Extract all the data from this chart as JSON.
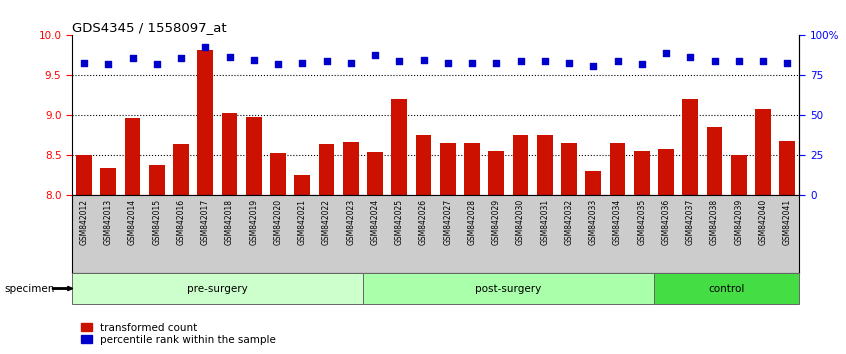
{
  "title": "GDS4345 / 1558097_at",
  "samples": [
    "GSM842012",
    "GSM842013",
    "GSM842014",
    "GSM842015",
    "GSM842016",
    "GSM842017",
    "GSM842018",
    "GSM842019",
    "GSM842020",
    "GSM842021",
    "GSM842022",
    "GSM842023",
    "GSM842024",
    "GSM842025",
    "GSM842026",
    "GSM842027",
    "GSM842028",
    "GSM842029",
    "GSM842030",
    "GSM842031",
    "GSM842032",
    "GSM842033",
    "GSM842034",
    "GSM842035",
    "GSM842036",
    "GSM842037",
    "GSM842038",
    "GSM842039",
    "GSM842040",
    "GSM842041"
  ],
  "bar_values": [
    8.5,
    8.33,
    8.96,
    8.37,
    8.64,
    9.82,
    9.02,
    8.98,
    8.52,
    8.25,
    8.64,
    8.66,
    8.53,
    9.2,
    8.75,
    8.65,
    8.65,
    8.55,
    8.75,
    8.75,
    8.65,
    8.3,
    8.65,
    8.55,
    8.58,
    9.2,
    8.85,
    8.5,
    9.07,
    8.68
  ],
  "percentile_values": [
    9.65,
    9.64,
    9.72,
    9.64,
    9.72,
    9.86,
    9.73,
    9.69,
    9.64,
    9.65,
    9.68,
    9.65,
    9.76,
    9.68,
    9.69,
    9.65,
    9.65,
    9.65,
    9.68,
    9.68,
    9.65,
    9.62,
    9.68,
    9.64,
    9.78,
    9.73,
    9.68,
    9.68,
    9.68,
    9.65
  ],
  "groups": [
    {
      "label": "pre-surgery",
      "start": 0,
      "end": 12,
      "color": "#ccffcc"
    },
    {
      "label": "post-surgery",
      "start": 12,
      "end": 24,
      "color": "#aaffaa"
    },
    {
      "label": "control",
      "start": 24,
      "end": 30,
      "color": "#44dd44"
    }
  ],
  "ylim_left": [
    8.0,
    10.0
  ],
  "yticks_left": [
    8.0,
    8.5,
    9.0,
    9.5,
    10.0
  ],
  "yticks_right": [
    0,
    25,
    50,
    75,
    100
  ],
  "bar_color": "#cc1100",
  "dot_color": "#0000cc",
  "xtick_bg_color": "#cccccc",
  "group_border_color": "#666666",
  "specimen_label": "specimen",
  "legend_bar_label": "transformed count",
  "legend_dot_label": "percentile rank within the sample"
}
